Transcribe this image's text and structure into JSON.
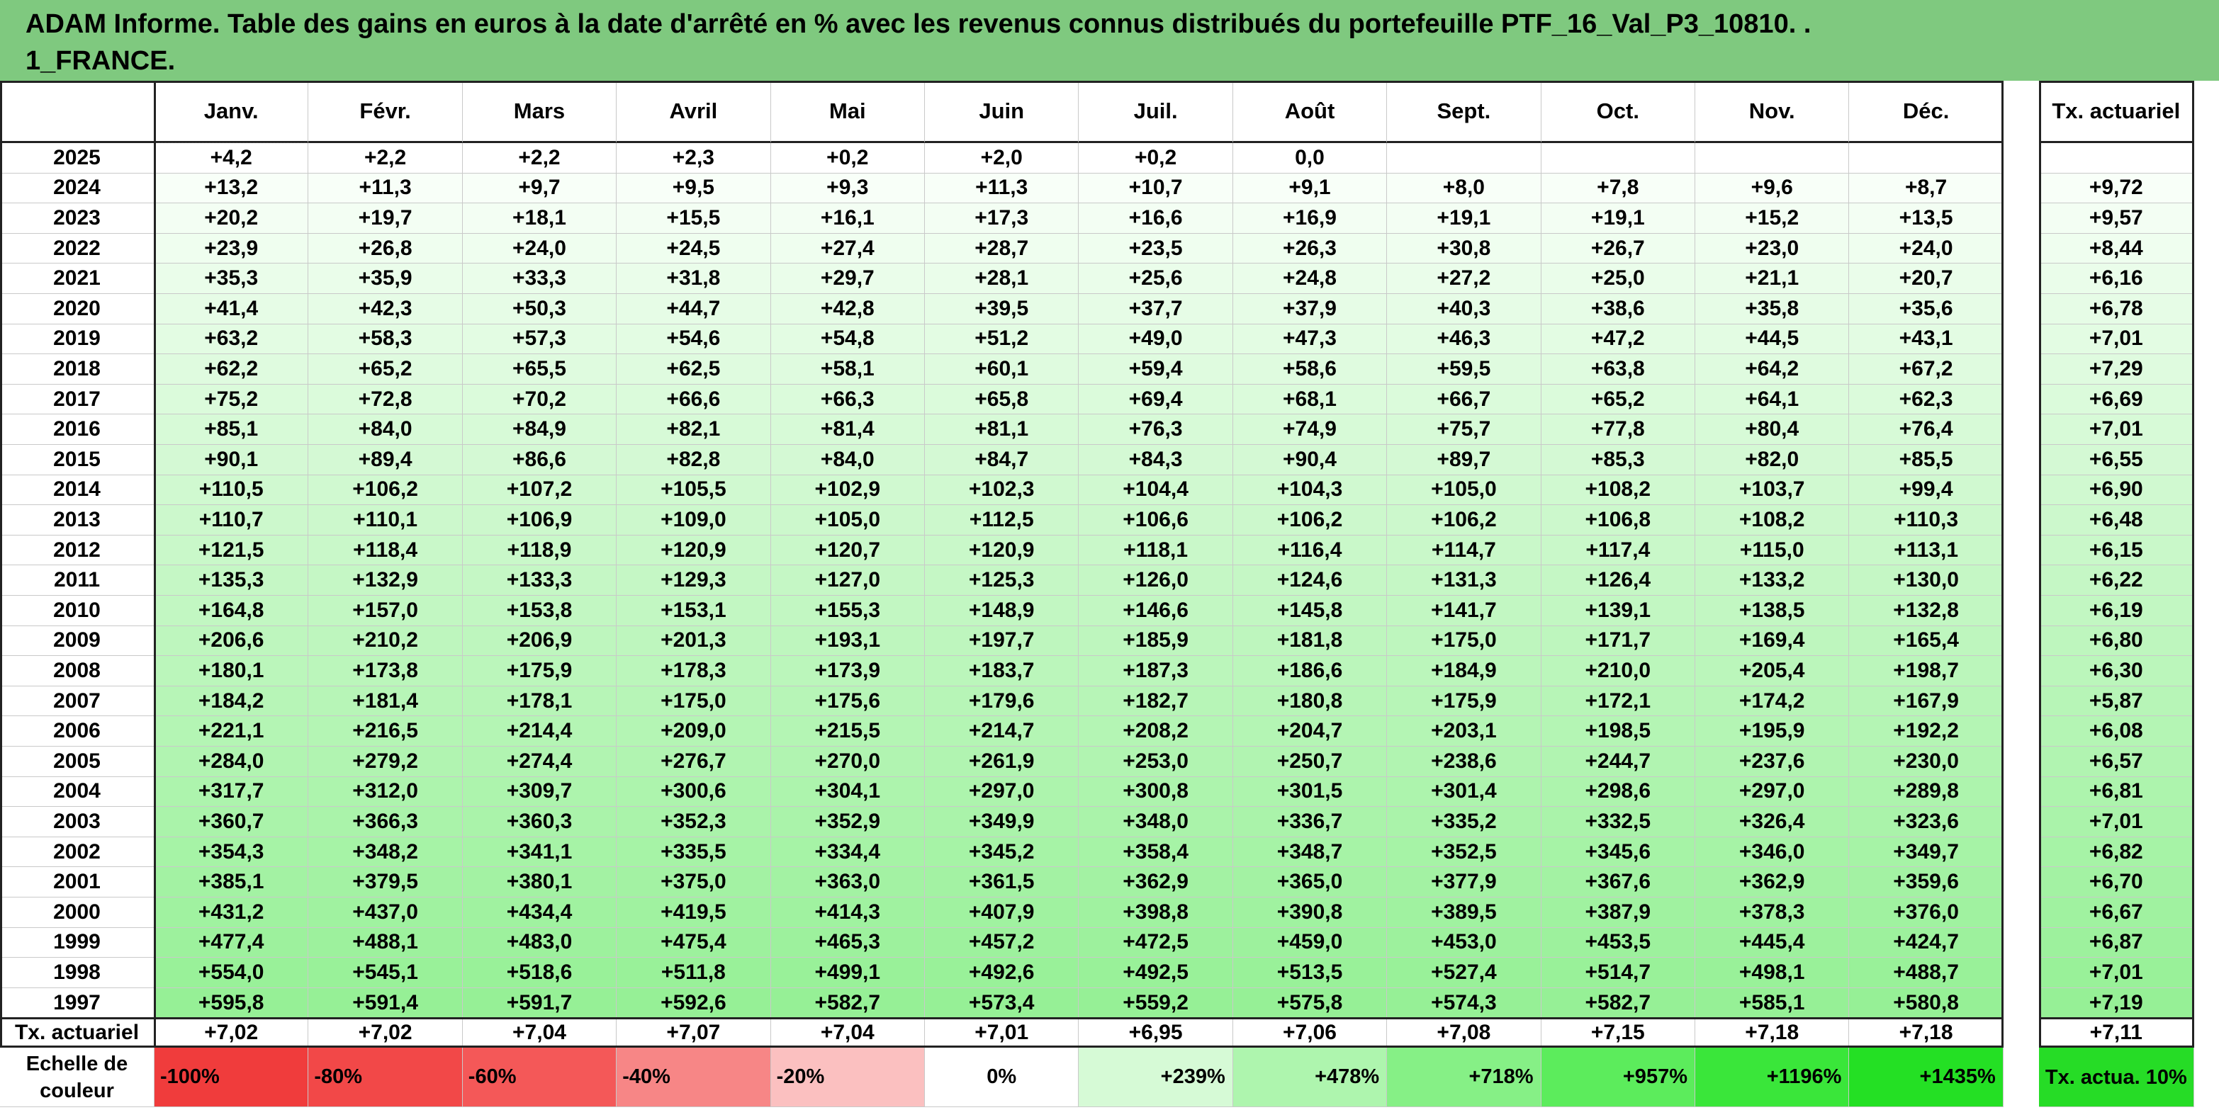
{
  "title_line1": "ADAM Informe. Table des gains en euros à la date d'arrêté en % avec les revenus connus distribués du portefeuille PTF_16_Val_P3_10810. .",
  "title_line2": "1_FRANCE.",
  "months": [
    "Janv.",
    "Févr.",
    "Mars",
    "Avril",
    "Mai",
    "Juin",
    "Juil.",
    "Août",
    "Sept.",
    "Oct.",
    "Nov.",
    "Déc."
  ],
  "actuarial_header": "Tx. actuariel",
  "rows": [
    {
      "year": "2025",
      "values": [
        "+4,2",
        "+2,2",
        "+2,2",
        "+2,3",
        "+0,2",
        "+2,0",
        "+0,2",
        "0,0",
        "",
        "",
        "",
        ""
      ],
      "act": ""
    },
    {
      "year": "2024",
      "values": [
        "+13,2",
        "+11,3",
        "+9,7",
        "+9,5",
        "+9,3",
        "+11,3",
        "+10,7",
        "+9,1",
        "+8,0",
        "+7,8",
        "+9,6",
        "+8,7"
      ],
      "act": "+9,72"
    },
    {
      "year": "2023",
      "values": [
        "+20,2",
        "+19,7",
        "+18,1",
        "+15,5",
        "+16,1",
        "+17,3",
        "+16,6",
        "+16,9",
        "+19,1",
        "+19,1",
        "+15,2",
        "+13,5"
      ],
      "act": "+9,57"
    },
    {
      "year": "2022",
      "values": [
        "+23,9",
        "+26,8",
        "+24,0",
        "+24,5",
        "+27,4",
        "+28,7",
        "+23,5",
        "+26,3",
        "+30,8",
        "+26,7",
        "+23,0",
        "+24,0"
      ],
      "act": "+8,44"
    },
    {
      "year": "2021",
      "values": [
        "+35,3",
        "+35,9",
        "+33,3",
        "+31,8",
        "+29,7",
        "+28,1",
        "+25,6",
        "+24,8",
        "+27,2",
        "+25,0",
        "+21,1",
        "+20,7"
      ],
      "act": "+6,16"
    },
    {
      "year": "2020",
      "values": [
        "+41,4",
        "+42,3",
        "+50,3",
        "+44,7",
        "+42,8",
        "+39,5",
        "+37,7",
        "+37,9",
        "+40,3",
        "+38,6",
        "+35,8",
        "+35,6"
      ],
      "act": "+6,78"
    },
    {
      "year": "2019",
      "values": [
        "+63,2",
        "+58,3",
        "+57,3",
        "+54,6",
        "+54,8",
        "+51,2",
        "+49,0",
        "+47,3",
        "+46,3",
        "+47,2",
        "+44,5",
        "+43,1"
      ],
      "act": "+7,01"
    },
    {
      "year": "2018",
      "values": [
        "+62,2",
        "+65,2",
        "+65,5",
        "+62,5",
        "+58,1",
        "+60,1",
        "+59,4",
        "+58,6",
        "+59,5",
        "+63,8",
        "+64,2",
        "+67,2"
      ],
      "act": "+7,29"
    },
    {
      "year": "2017",
      "values": [
        "+75,2",
        "+72,8",
        "+70,2",
        "+66,6",
        "+66,3",
        "+65,8",
        "+69,4",
        "+68,1",
        "+66,7",
        "+65,2",
        "+64,1",
        "+62,3"
      ],
      "act": "+6,69"
    },
    {
      "year": "2016",
      "values": [
        "+85,1",
        "+84,0",
        "+84,9",
        "+82,1",
        "+81,4",
        "+81,1",
        "+76,3",
        "+74,9",
        "+75,7",
        "+77,8",
        "+80,4",
        "+76,4"
      ],
      "act": "+7,01"
    },
    {
      "year": "2015",
      "values": [
        "+90,1",
        "+89,4",
        "+86,6",
        "+82,8",
        "+84,0",
        "+84,7",
        "+84,3",
        "+90,4",
        "+89,7",
        "+85,3",
        "+82,0",
        "+85,5"
      ],
      "act": "+6,55"
    },
    {
      "year": "2014",
      "values": [
        "+110,5",
        "+106,2",
        "+107,2",
        "+105,5",
        "+102,9",
        "+102,3",
        "+104,4",
        "+104,3",
        "+105,0",
        "+108,2",
        "+103,7",
        "+99,4"
      ],
      "act": "+6,90"
    },
    {
      "year": "2013",
      "values": [
        "+110,7",
        "+110,1",
        "+106,9",
        "+109,0",
        "+105,0",
        "+112,5",
        "+106,6",
        "+106,2",
        "+106,2",
        "+106,8",
        "+108,2",
        "+110,3"
      ],
      "act": "+6,48"
    },
    {
      "year": "2012",
      "values": [
        "+121,5",
        "+118,4",
        "+118,9",
        "+120,9",
        "+120,7",
        "+120,9",
        "+118,1",
        "+116,4",
        "+114,7",
        "+117,4",
        "+115,0",
        "+113,1"
      ],
      "act": "+6,15"
    },
    {
      "year": "2011",
      "values": [
        "+135,3",
        "+132,9",
        "+133,3",
        "+129,3",
        "+127,0",
        "+125,3",
        "+126,0",
        "+124,6",
        "+131,3",
        "+126,4",
        "+133,2",
        "+130,0"
      ],
      "act": "+6,22"
    },
    {
      "year": "2010",
      "values": [
        "+164,8",
        "+157,0",
        "+153,8",
        "+153,1",
        "+155,3",
        "+148,9",
        "+146,6",
        "+145,8",
        "+141,7",
        "+139,1",
        "+138,5",
        "+132,8"
      ],
      "act": "+6,19"
    },
    {
      "year": "2009",
      "values": [
        "+206,6",
        "+210,2",
        "+206,9",
        "+201,3",
        "+193,1",
        "+197,7",
        "+185,9",
        "+181,8",
        "+175,0",
        "+171,7",
        "+169,4",
        "+165,4"
      ],
      "act": "+6,80"
    },
    {
      "year": "2008",
      "values": [
        "+180,1",
        "+173,8",
        "+175,9",
        "+178,3",
        "+173,9",
        "+183,7",
        "+187,3",
        "+186,6",
        "+184,9",
        "+210,0",
        "+205,4",
        "+198,7"
      ],
      "act": "+6,30"
    },
    {
      "year": "2007",
      "values": [
        "+184,2",
        "+181,4",
        "+178,1",
        "+175,0",
        "+175,6",
        "+179,6",
        "+182,7",
        "+180,8",
        "+175,9",
        "+172,1",
        "+174,2",
        "+167,9"
      ],
      "act": "+5,87"
    },
    {
      "year": "2006",
      "values": [
        "+221,1",
        "+216,5",
        "+214,4",
        "+209,0",
        "+215,5",
        "+214,7",
        "+208,2",
        "+204,7",
        "+203,1",
        "+198,5",
        "+195,9",
        "+192,2"
      ],
      "act": "+6,08"
    },
    {
      "year": "2005",
      "values": [
        "+284,0",
        "+279,2",
        "+274,4",
        "+276,7",
        "+270,0",
        "+261,9",
        "+253,0",
        "+250,7",
        "+238,6",
        "+244,7",
        "+237,6",
        "+230,0"
      ],
      "act": "+6,57"
    },
    {
      "year": "2004",
      "values": [
        "+317,7",
        "+312,0",
        "+309,7",
        "+300,6",
        "+304,1",
        "+297,0",
        "+300,8",
        "+301,5",
        "+301,4",
        "+298,6",
        "+297,0",
        "+289,8"
      ],
      "act": "+6,81"
    },
    {
      "year": "2003",
      "values": [
        "+360,7",
        "+366,3",
        "+360,3",
        "+352,3",
        "+352,9",
        "+349,9",
        "+348,0",
        "+336,7",
        "+335,2",
        "+332,5",
        "+326,4",
        "+323,6"
      ],
      "act": "+7,01"
    },
    {
      "year": "2002",
      "values": [
        "+354,3",
        "+348,2",
        "+341,1",
        "+335,5",
        "+334,4",
        "+345,2",
        "+358,4",
        "+348,7",
        "+352,5",
        "+345,6",
        "+346,0",
        "+349,7"
      ],
      "act": "+6,82"
    },
    {
      "year": "2001",
      "values": [
        "+385,1",
        "+379,5",
        "+380,1",
        "+375,0",
        "+363,0",
        "+361,5",
        "+362,9",
        "+365,0",
        "+377,9",
        "+367,6",
        "+362,9",
        "+359,6"
      ],
      "act": "+6,70"
    },
    {
      "year": "2000",
      "values": [
        "+431,2",
        "+437,0",
        "+434,4",
        "+419,5",
        "+414,3",
        "+407,9",
        "+398,8",
        "+390,8",
        "+389,5",
        "+387,9",
        "+378,3",
        "+376,0"
      ],
      "act": "+6,67"
    },
    {
      "year": "1999",
      "values": [
        "+477,4",
        "+488,1",
        "+483,0",
        "+475,4",
        "+465,3",
        "+457,2",
        "+472,5",
        "+459,0",
        "+453,0",
        "+453,5",
        "+445,4",
        "+424,7"
      ],
      "act": "+6,87"
    },
    {
      "year": "1998",
      "values": [
        "+554,0",
        "+545,1",
        "+518,6",
        "+511,8",
        "+499,1",
        "+492,6",
        "+492,5",
        "+513,5",
        "+527,4",
        "+514,7",
        "+498,1",
        "+488,7"
      ],
      "act": "+7,01"
    },
    {
      "year": "1997",
      "values": [
        "+595,8",
        "+591,4",
        "+591,7",
        "+592,6",
        "+582,7",
        "+573,4",
        "+559,2",
        "+575,8",
        "+574,3",
        "+582,7",
        "+585,1",
        "+580,8"
      ],
      "act": "+7,19"
    }
  ],
  "footer": {
    "label": "Tx. actuariel",
    "values": [
      "+7,02",
      "+7,02",
      "+7,04",
      "+7,07",
      "+7,04",
      "+7,01",
      "+6,95",
      "+7,06",
      "+7,08",
      "+7,15",
      "+7,18",
      "+7,18"
    ],
    "act": "+7,11"
  },
  "scale": {
    "label": "Echelle de couleur",
    "items": [
      {
        "text": "-100%",
        "color": "#f03c3c"
      },
      {
        "text": "-80%",
        "color": "#f24848"
      },
      {
        "text": "-60%",
        "color": "#f45858"
      },
      {
        "text": "-40%",
        "color": "#f78686"
      },
      {
        "text": "-20%",
        "color": "#fbc0c0"
      },
      {
        "text": "0%",
        "color": "#ffffff"
      },
      {
        "text": "+239%",
        "color": "#d6fad6"
      },
      {
        "text": "+478%",
        "color": "#aef5ae"
      },
      {
        "text": "+718%",
        "color": "#86f086"
      },
      {
        "text": "+957%",
        "color": "#5cec5c"
      },
      {
        "text": "+1196%",
        "color": "#3ae63a"
      },
      {
        "text": "+1435%",
        "color": "#24e024"
      }
    ],
    "act_label": "Tx. actua. 10%",
    "act_color": "#26dc26"
  }
}
